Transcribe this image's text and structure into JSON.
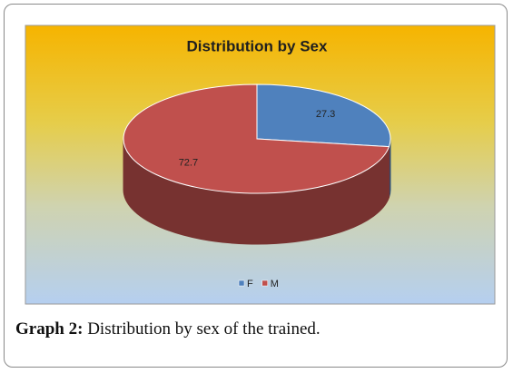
{
  "chart_data": {
    "type": "pie",
    "title": "Distribution by Sex",
    "categories": [
      "F",
      "M"
    ],
    "values": [
      27.3,
      72.7
    ],
    "colors": [
      "#4f81bd",
      "#c0504d"
    ],
    "legend": "bottom"
  },
  "caption": {
    "label": "Graph 2:",
    "text": "Distribution by sex of the trained."
  }
}
